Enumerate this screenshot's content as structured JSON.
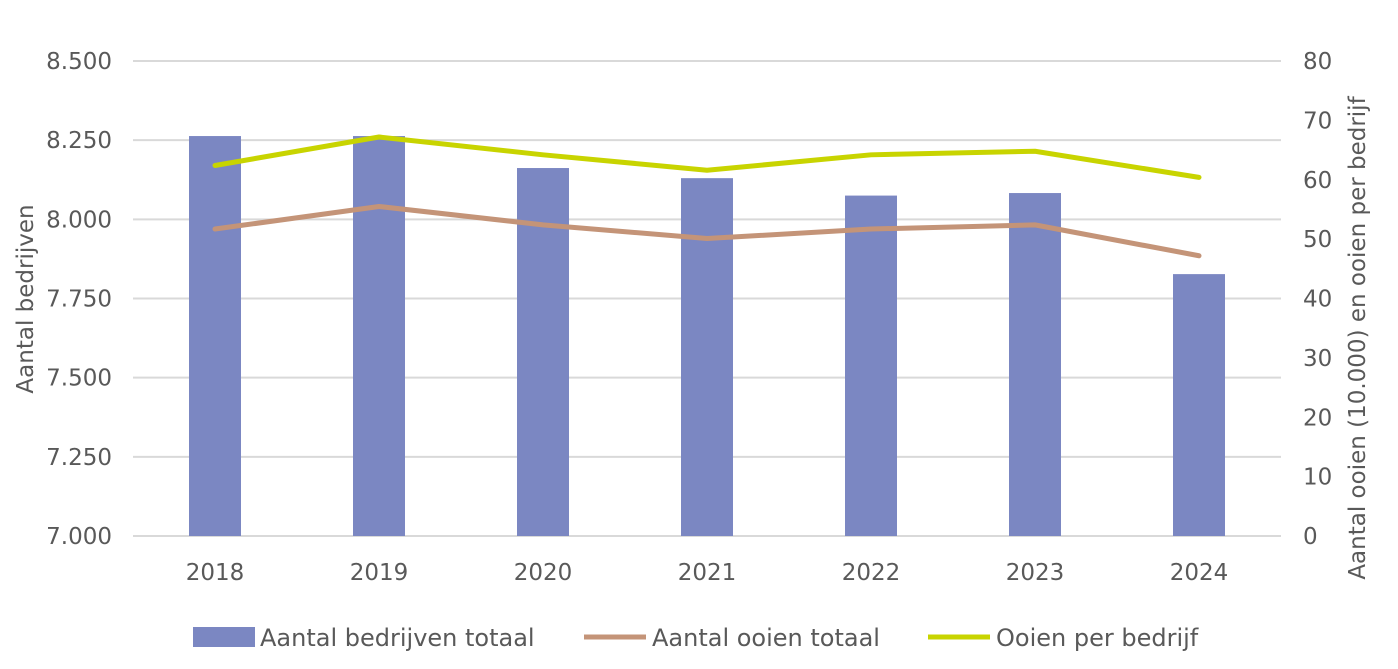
{
  "chart_data": {
    "type": "bar",
    "categories": [
      "2018",
      "2019",
      "2020",
      "2021",
      "2022",
      "2023",
      "2024"
    ],
    "series": [
      {
        "name": "Aantal bedrijven totaal",
        "type": "bar",
        "axis": "left",
        "color": "#7b87c2",
        "values": [
          8263,
          8263,
          8162,
          8130,
          8075,
          8083,
          7827
        ]
      },
      {
        "name": "Aantal ooien totaal",
        "type": "line",
        "axis": "right",
        "color": "#c49478",
        "values": [
          51.7,
          55.5,
          52.4,
          50.1,
          51.7,
          52.4,
          47.2
        ]
      },
      {
        "name": "Ooien per bedrijf",
        "type": "line",
        "axis": "right",
        "color": "#c8d400",
        "values": [
          62.4,
          67.2,
          64.2,
          61.6,
          64.2,
          64.8,
          60.4
        ]
      }
    ],
    "ylabel": "Aantal bedrijven",
    "ylim": [
      7000,
      8500
    ],
    "yticks": [
      "7.000",
      "7.250",
      "7.500",
      "7.750",
      "8.000",
      "8.250",
      "8.500"
    ],
    "y2label": "Aantal ooien (10.000) en ooien per bedrijf",
    "y2lim": [
      0,
      80
    ],
    "y2ticks": [
      "0",
      "10",
      "20",
      "30",
      "40",
      "50",
      "60",
      "70",
      "80"
    ],
    "grid": true,
    "legend_position": "bottom"
  }
}
